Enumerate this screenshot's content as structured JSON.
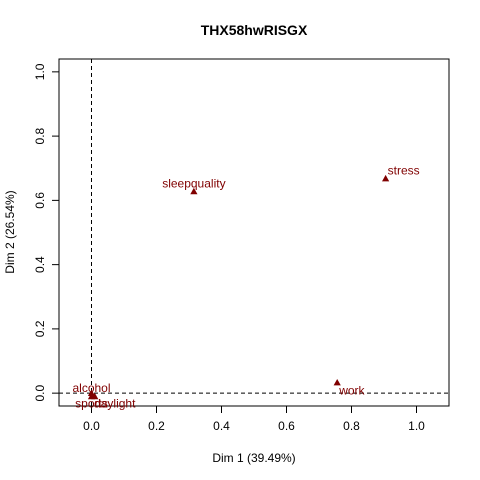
{
  "chart_data": {
    "type": "scatter",
    "title": "THX58hwRISGX",
    "xlabel": "Dim 1 (39.49%)",
    "ylabel": "Dim 2 (26.54%)",
    "xlim": [
      -0.1,
      1.1
    ],
    "ylim": [
      -0.04,
      1.04
    ],
    "xticks": [
      0.0,
      0.2,
      0.4,
      0.6,
      0.8,
      1.0
    ],
    "yticks": [
      0.0,
      0.2,
      0.4,
      0.6,
      0.8,
      1.0
    ],
    "tick_labels_x": [
      "0.0",
      "0.2",
      "0.4",
      "0.6",
      "0.8",
      "1.0"
    ],
    "tick_labels_y": [
      "0.0",
      "0.2",
      "0.4",
      "0.6",
      "0.8",
      "1.0"
    ],
    "reference_lines": {
      "x": 0,
      "y": 0,
      "style": "dashed"
    },
    "grid": false,
    "legend": "none",
    "point_color": "#800000",
    "marker": "triangle",
    "points": [
      {
        "label": "sleepquality",
        "x": 0.315,
        "y": 0.628
      },
      {
        "label": "stress",
        "x": 0.905,
        "y": 0.668
      },
      {
        "label": "work",
        "x": 0.756,
        "y": 0.033
      },
      {
        "label": "alcohol",
        "x": 0.0,
        "y": 0.0
      },
      {
        "label": "sports",
        "x": 0.0,
        "y": -0.01
      },
      {
        "label": "daylight",
        "x": 0.01,
        "y": -0.01
      }
    ]
  }
}
